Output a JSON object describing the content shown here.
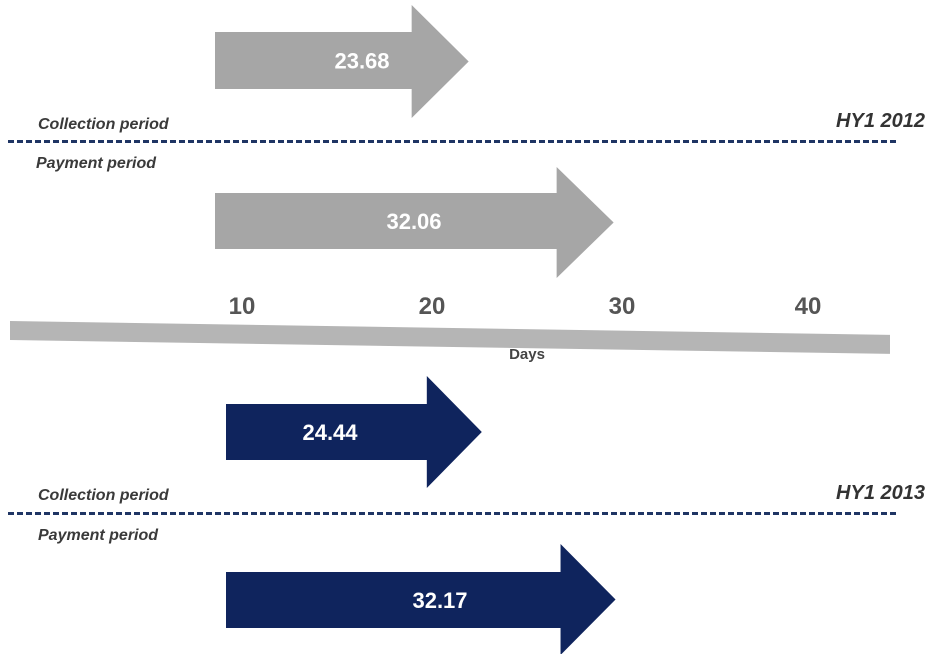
{
  "labels": {
    "collection": "Collection period",
    "payment": "Payment period",
    "axis": "Days"
  },
  "chart_data": {
    "type": "bar",
    "orientation": "horizontal",
    "xlabel": "Days",
    "x_ticks": [
      "10",
      "20",
      "30",
      "40"
    ],
    "xlim": [
      10,
      40
    ],
    "panels": [
      {
        "name": "HY1 2012",
        "color": "#a6a6a6",
        "series": [
          {
            "name": "Collection period",
            "value": 23.68,
            "label": "23.68"
          },
          {
            "name": "Payment period",
            "value": 32.06,
            "label": "32.06"
          }
        ]
      },
      {
        "name": "HY1 2013",
        "color": "#0f245d",
        "series": [
          {
            "name": "Collection period",
            "value": 24.44,
            "label": "24.44"
          },
          {
            "name": "Payment period",
            "value": 32.17,
            "label": "32.17"
          }
        ]
      }
    ]
  }
}
